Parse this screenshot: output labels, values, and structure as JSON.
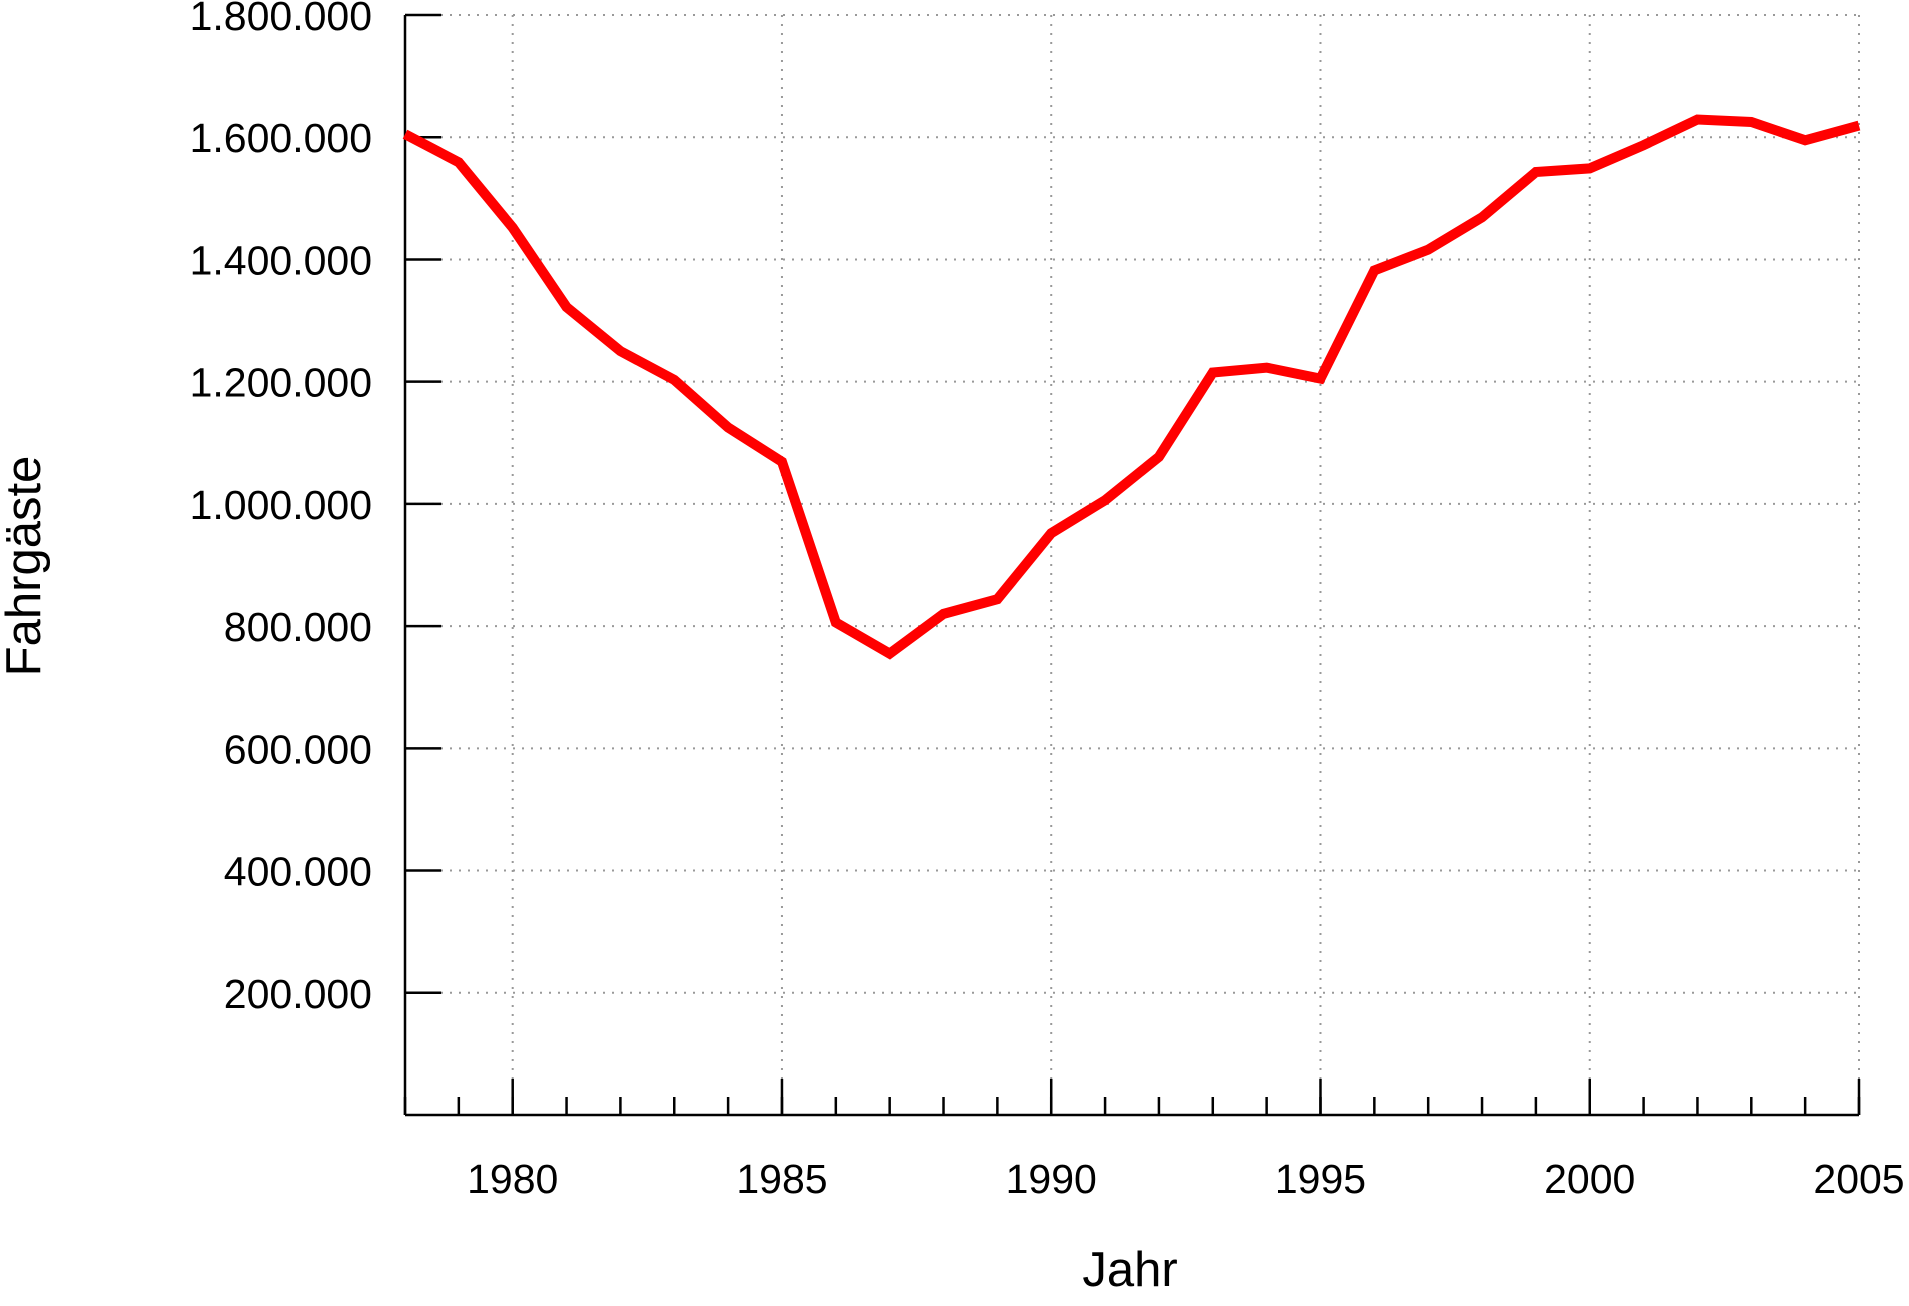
{
  "chart_data": {
    "type": "line",
    "x_label": "Jahr",
    "y_label": "Fahrgäste",
    "x": [
      1978,
      1979,
      1980,
      1981,
      1982,
      1983,
      1984,
      1985,
      1986,
      1987,
      1988,
      1989,
      1990,
      1991,
      1992,
      1993,
      1994,
      1995,
      1996,
      1997,
      1998,
      1999,
      2000,
      2001,
      2002,
      2003,
      2004,
      2005
    ],
    "series": [
      {
        "color": "#ff0000",
        "values": [
          1605000,
          1559000,
          1452000,
          1322000,
          1250000,
          1203000,
          1125000,
          1069000,
          806000,
          755000,
          820000,
          844000,
          952000,
          1006000,
          1077000,
          1215000,
          1223000,
          1205000,
          1382000,
          1416000,
          1469000,
          1543000,
          1549000,
          1587000,
          1629000,
          1625000,
          1595000,
          1619000
        ]
      }
    ],
    "xlim": [
      1978,
      2005
    ],
    "xticks": [
      1980,
      1985,
      1990,
      1995,
      2000,
      2005
    ],
    "ylim": [
      0,
      1800000
    ],
    "yticks": [
      {
        "value": 200000,
        "label": "200.000"
      },
      {
        "value": 400000,
        "label": "400.000"
      },
      {
        "value": 600000,
        "label": "600.000"
      },
      {
        "value": 800000,
        "label": "800.000"
      },
      {
        "value": 1000000,
        "label": "1.000.000"
      },
      {
        "value": 1200000,
        "label": "1.200.000"
      },
      {
        "value": 1400000,
        "label": "1.400.000"
      },
      {
        "value": 1600000,
        "label": "1.600.000"
      },
      {
        "value": 1800000,
        "label": "1.800.000"
      }
    ],
    "grid": true
  }
}
